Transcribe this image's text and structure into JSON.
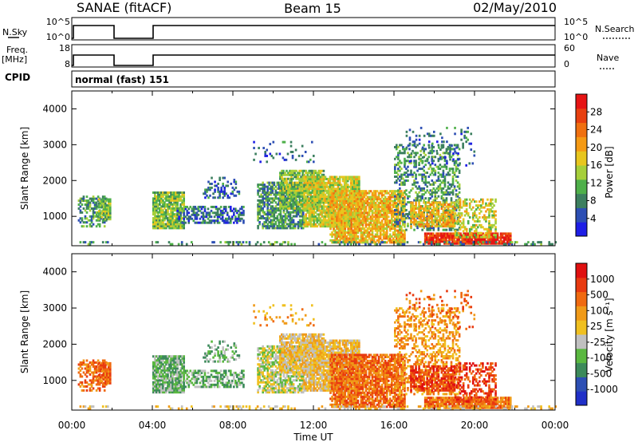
{
  "header": {
    "title": "SANAE (fitACF)",
    "beam": "Beam 15",
    "date": "02/May/2010"
  },
  "top_panels": {
    "nsky_label": "N.Sky",
    "nsky_ticks": [
      "10^5",
      "10^0"
    ],
    "nsearch_label": "N.Search",
    "nsearch_ticks": [
      "10^5",
      "10^0"
    ],
    "freq_label": "Freq.",
    "freq_unit": "[MHz]",
    "freq_ticks": [
      "18",
      "8"
    ],
    "nave_label": "Nave",
    "nave_ticks": [
      "60",
      "0"
    ],
    "cpid_label": "CPID",
    "cpid_value": "normal (fast) 151"
  },
  "axes": {
    "x_ticks": [
      "00:00",
      "04:00",
      "08:00",
      "12:00",
      "16:00",
      "20:00",
      "00:00"
    ],
    "x_label": "Time UT",
    "y_ticks": [
      "1000",
      "2000",
      "3000",
      "4000"
    ],
    "y_label": "Slant Range [km]"
  },
  "colors": {
    "power": [
      "#1e1ee6",
      "#2d4fb4",
      "#3c7f5f",
      "#4fb04a",
      "#a6cf3a",
      "#e8c61e",
      "#f59a14",
      "#f07010",
      "#e84010",
      "#e61414"
    ],
    "velocity": [
      "#2030c8",
      "#2d4fb4",
      "#3c8a5a",
      "#5ab840",
      "#c0c0c0",
      "#f0c020",
      "#f09a18",
      "#f06a10",
      "#e83a10",
      "#e01010"
    ]
  },
  "chart_data": [
    {
      "type": "heatmap",
      "title": "Power",
      "unit": "[dB]",
      "x_range_hours": [
        0,
        24
      ],
      "y_range_km": [
        180,
        4500
      ],
      "colorbar_range": [
        0,
        32
      ],
      "colorbar_ticks": [
        "28",
        "24",
        "20",
        "16",
        "12",
        "8",
        "4"
      ],
      "data_gap_hours": [
        2,
        4
      ]
    },
    {
      "type": "heatmap",
      "title": "Velocity",
      "unit": "[m s⁻¹]",
      "x_range_hours": [
        0,
        24
      ],
      "y_range_km": [
        180,
        4500
      ],
      "colorbar_ticks": [
        "1000",
        "500",
        "100",
        "25",
        "-25",
        "-100",
        "-500",
        "-1000"
      ],
      "data_gap_hours": [
        2,
        4
      ]
    }
  ]
}
